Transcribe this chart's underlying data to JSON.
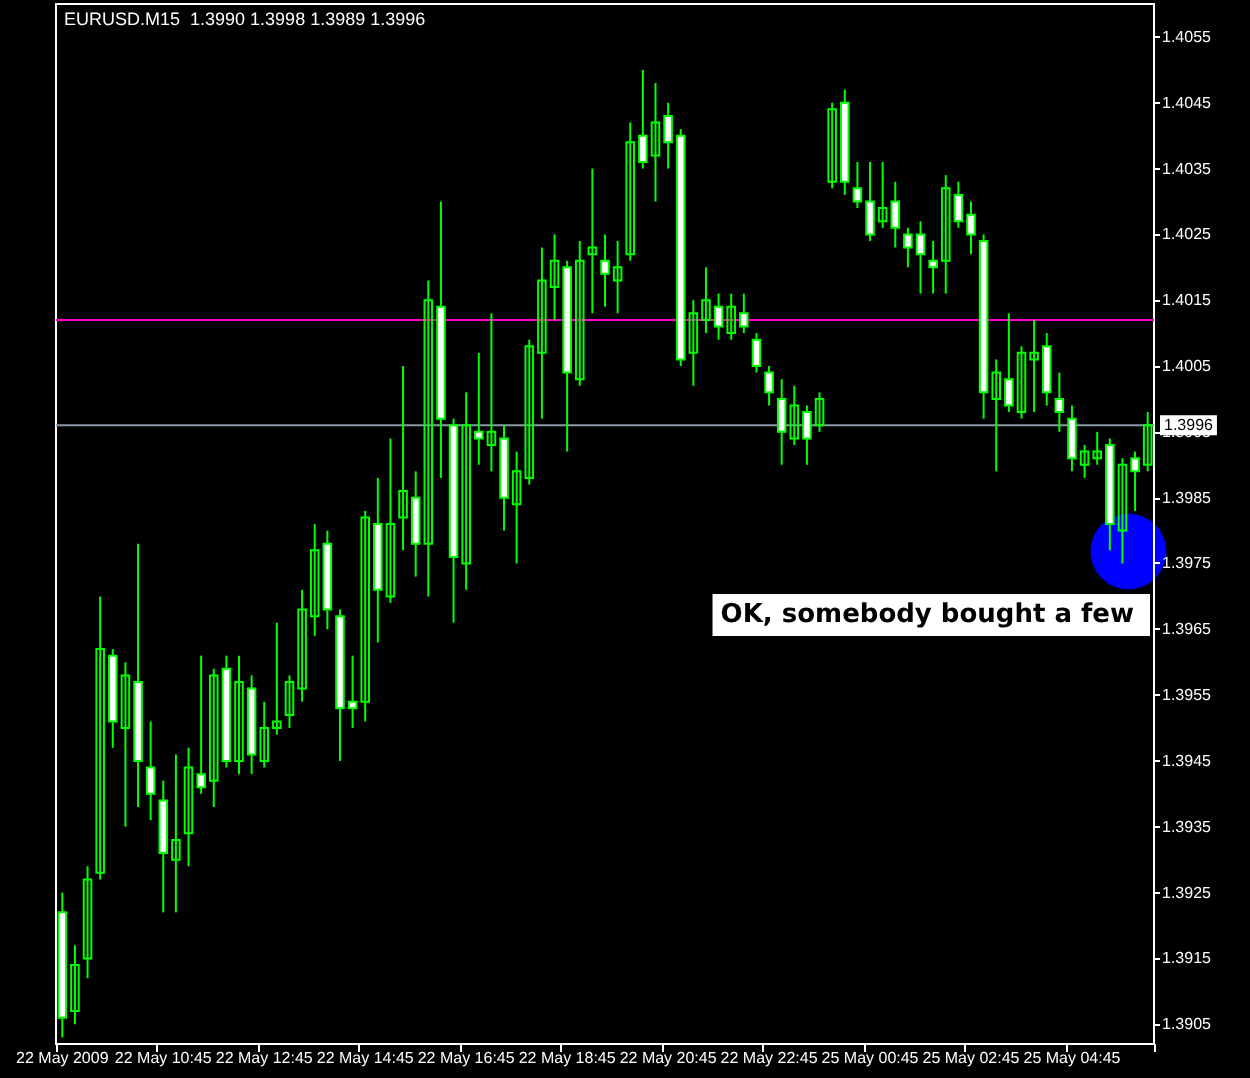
{
  "chart_data": {
    "type": "candlestick",
    "title": "EURUSD.M15  1.3990 1.3998 1.3989 1.3996",
    "categories": [
      "22 May 2009",
      null,
      null,
      null,
      null,
      null,
      null,
      null,
      "22 May 10:45",
      null,
      null,
      null,
      null,
      null,
      null,
      null,
      "22 May 12:45",
      null,
      null,
      null,
      null,
      null,
      null,
      null,
      "22 May 14:45",
      null,
      null,
      null,
      null,
      null,
      null,
      null,
      "22 May 16:45",
      null,
      null,
      null,
      null,
      null,
      null,
      null,
      "22 May 18:45",
      null,
      null,
      null,
      null,
      null,
      null,
      null,
      "22 May 20:45",
      null,
      null,
      null,
      null,
      null,
      null,
      null,
      "22 May 22:45",
      null,
      null,
      null,
      null,
      null,
      null,
      null,
      "25 May 00:45",
      null,
      null,
      null,
      null,
      null,
      null,
      null,
      "25 May 02:45",
      null,
      null,
      null,
      null,
      null,
      null,
      null,
      "25 May 04:45",
      null,
      null,
      null,
      null,
      null,
      null
    ],
    "color": "#00ff00",
    "ohlc": [
      [
        1.3922,
        1.3925,
        1.3903,
        1.3906
      ],
      [
        1.3907,
        1.3917,
        1.3905,
        1.3914
      ],
      [
        1.3915,
        1.3929,
        1.3912,
        1.3927
      ],
      [
        1.3928,
        1.397,
        1.3927,
        1.3962
      ],
      [
        1.3961,
        1.3962,
        1.3947,
        1.3951
      ],
      [
        1.395,
        1.396,
        1.3935,
        1.3958
      ],
      [
        1.3957,
        1.3978,
        1.3938,
        1.3945
      ],
      [
        1.3944,
        1.3951,
        1.3936,
        1.394
      ],
      [
        1.3939,
        1.3942,
        1.3922,
        1.3931
      ],
      [
        1.393,
        1.3946,
        1.3922,
        1.3933
      ],
      [
        1.3934,
        1.3947,
        1.3929,
        1.3944
      ],
      [
        1.3943,
        1.3961,
        1.394,
        1.3941
      ],
      [
        1.3942,
        1.3959,
        1.3938,
        1.3958
      ],
      [
        1.3959,
        1.3961,
        1.3944,
        1.3945
      ],
      [
        1.3945,
        1.3961,
        1.3943,
        1.3957
      ],
      [
        1.3956,
        1.3958,
        1.3943,
        1.3946
      ],
      [
        1.3945,
        1.3954,
        1.3944,
        1.395
      ],
      [
        1.395,
        1.3966,
        1.3949,
        1.3951
      ],
      [
        1.3952,
        1.3958,
        1.395,
        1.3957
      ],
      [
        1.3956,
        1.3971,
        1.3954,
        1.3968
      ],
      [
        1.3967,
        1.3981,
        1.3964,
        1.3977
      ],
      [
        1.3978,
        1.398,
        1.3965,
        1.3968
      ],
      [
        1.3967,
        1.3968,
        1.3945,
        1.3953
      ],
      [
        1.3954,
        1.3961,
        1.395,
        1.3953
      ],
      [
        1.3954,
        1.3983,
        1.3951,
        1.3982
      ],
      [
        1.3981,
        1.3988,
        1.3963,
        1.3971
      ],
      [
        1.397,
        1.3994,
        1.3969,
        1.3981
      ],
      [
        1.3982,
        1.4005,
        1.3977,
        1.3986
      ],
      [
        1.3985,
        1.3989,
        1.3973,
        1.3978
      ],
      [
        1.3978,
        1.4018,
        1.397,
        1.4015
      ],
      [
        1.4014,
        1.403,
        1.3988,
        1.3997
      ],
      [
        1.3996,
        1.3997,
        1.3966,
        1.3976
      ],
      [
        1.3975,
        1.4001,
        1.3971,
        1.3996
      ],
      [
        1.3995,
        1.4007,
        1.399,
        1.3994
      ],
      [
        1.3993,
        1.4013,
        1.3989,
        1.3995
      ],
      [
        1.3994,
        1.3996,
        1.398,
        1.3985
      ],
      [
        1.3984,
        1.3992,
        1.3975,
        1.3989
      ],
      [
        1.3988,
        1.4009,
        1.3987,
        1.4008
      ],
      [
        1.4007,
        1.4023,
        1.3997,
        1.4018
      ],
      [
        1.4017,
        1.4025,
        1.4012,
        1.4021
      ],
      [
        1.402,
        1.4021,
        1.3992,
        1.4004
      ],
      [
        1.4003,
        1.4024,
        1.4002,
        1.4021
      ],
      [
        1.4022,
        1.4035,
        1.4013,
        1.4023
      ],
      [
        1.4021,
        1.4025,
        1.4014,
        1.4019
      ],
      [
        1.4018,
        1.4024,
        1.4013,
        1.402
      ],
      [
        1.4022,
        1.4042,
        1.4021,
        1.4039
      ],
      [
        1.404,
        1.405,
        1.4035,
        1.4036
      ],
      [
        1.4037,
        1.4048,
        1.403,
        1.4042
      ],
      [
        1.4043,
        1.4045,
        1.4035,
        1.4039
      ],
      [
        1.404,
        1.4041,
        1.4005,
        1.4006
      ],
      [
        1.4007,
        1.4015,
        1.4002,
        1.4013
      ],
      [
        1.4012,
        1.402,
        1.401,
        1.4015
      ],
      [
        1.4014,
        1.4016,
        1.4009,
        1.4011
      ],
      [
        1.401,
        1.4016,
        1.4009,
        1.4014
      ],
      [
        1.4013,
        1.4016,
        1.401,
        1.4011
      ],
      [
        1.4009,
        1.401,
        1.4004,
        1.4005
      ],
      [
        1.4004,
        1.4005,
        1.3999,
        1.4001
      ],
      [
        1.4,
        1.4003,
        1.399,
        1.3995
      ],
      [
        1.3994,
        1.4002,
        1.3993,
        1.3999
      ],
      [
        1.3998,
        1.3999,
        1.399,
        1.3994
      ],
      [
        1.3996,
        1.4001,
        1.3995,
        1.4
      ],
      [
        1.4033,
        1.4045,
        1.4032,
        1.4044
      ],
      [
        1.4045,
        1.4047,
        1.4031,
        1.4033
      ],
      [
        1.4032,
        1.4036,
        1.4029,
        1.403
      ],
      [
        1.403,
        1.4036,
        1.4024,
        1.4025
      ],
      [
        1.4027,
        1.4036,
        1.4026,
        1.4029
      ],
      [
        1.403,
        1.4033,
        1.4023,
        1.4026
      ],
      [
        1.4025,
        1.4026,
        1.402,
        1.4023
      ],
      [
        1.4025,
        1.4027,
        1.4016,
        1.4022
      ],
      [
        1.4021,
        1.4024,
        1.4016,
        1.402
      ],
      [
        1.4021,
        1.4034,
        1.4016,
        1.4032
      ],
      [
        1.4031,
        1.4033,
        1.4026,
        1.4027
      ],
      [
        1.4028,
        1.403,
        1.4022,
        1.4025
      ],
      [
        1.4024,
        1.4025,
        1.3997,
        1.4001
      ],
      [
        1.4,
        1.4006,
        1.3989,
        1.4004
      ],
      [
        1.4003,
        1.4013,
        1.3998,
        1.3999
      ],
      [
        1.3998,
        1.4008,
        1.3997,
        1.4007
      ],
      [
        1.4006,
        1.4012,
        1.3998,
        1.4007
      ],
      [
        1.4008,
        1.401,
        1.3999,
        1.4001
      ],
      [
        1.4,
        1.4004,
        1.3995,
        1.3998
      ],
      [
        1.3997,
        1.3999,
        1.3989,
        1.3991
      ],
      [
        1.399,
        1.3993,
        1.3988,
        1.3992
      ],
      [
        1.3991,
        1.3995,
        1.399,
        1.3992
      ],
      [
        1.3993,
        1.3994,
        1.3977,
        1.3981
      ],
      [
        1.398,
        1.3991,
        1.3975,
        1.399
      ],
      [
        1.3991,
        1.3992,
        1.3983,
        1.3989
      ],
      [
        1.399,
        1.3998,
        1.3989,
        1.3996
      ]
    ],
    "ylim": [
      1.3902,
      1.406
    ],
    "yticks": [
      1.3905,
      1.3915,
      1.3925,
      1.3935,
      1.3945,
      1.3955,
      1.3965,
      1.3975,
      1.3985,
      1.3995,
      1.4005,
      1.4015,
      1.4025,
      1.4035,
      1.4045,
      1.4055
    ],
    "ref_lines": [
      {
        "axis": "y",
        "value": 1.3996,
        "label": "1.3996",
        "color": "#8a9aa8"
      },
      {
        "axis": "y",
        "value": 1.4012,
        "color": "#ff00cc"
      }
    ],
    "annotations": [
      "OK, somebody bought a few"
    ]
  }
}
